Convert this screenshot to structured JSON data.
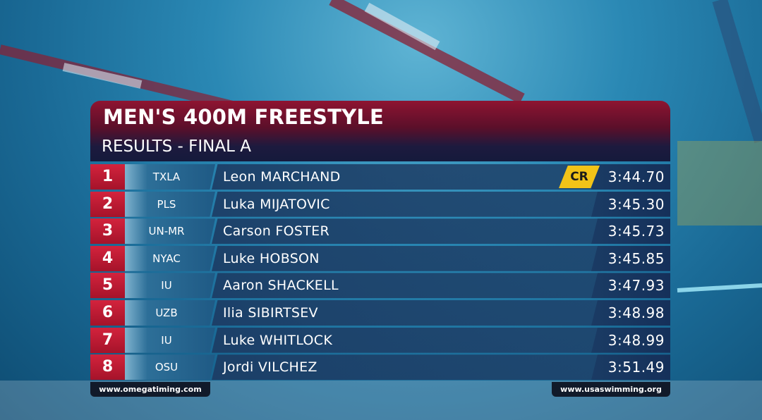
{
  "header": {
    "title": "MEN'S 400M FREESTYLE",
    "subtitle": "RESULTS - FINAL A"
  },
  "results": [
    {
      "rank": 1,
      "team": "TXLA",
      "name": "Leon MARCHAND",
      "badge": "CR",
      "time": "3:44.70"
    },
    {
      "rank": 2,
      "team": "PLS",
      "name": "Luka MIJATOVIC",
      "time": "3:45.30"
    },
    {
      "rank": 3,
      "team": "UN-MR",
      "name": "Carson FOSTER",
      "time": "3:45.73"
    },
    {
      "rank": 4,
      "team": "NYAC",
      "name": "Luke HOBSON",
      "time": "3:45.85"
    },
    {
      "rank": 5,
      "team": "IU",
      "name": "Aaron SHACKELL",
      "time": "3:47.93"
    },
    {
      "rank": 6,
      "team": "UZB",
      "name": "Ilia SIBIRTSEV",
      "time": "3:48.98"
    },
    {
      "rank": 7,
      "team": "IU",
      "name": "Luke WHITLOCK",
      "time": "3:48.99"
    },
    {
      "rank": 8,
      "team": "OSU",
      "name": "Jordi VILCHEZ",
      "time": "3:51.49"
    }
  ],
  "footer": {
    "left": "www.omegatiming.com",
    "right": "www.usaswimming.org"
  }
}
